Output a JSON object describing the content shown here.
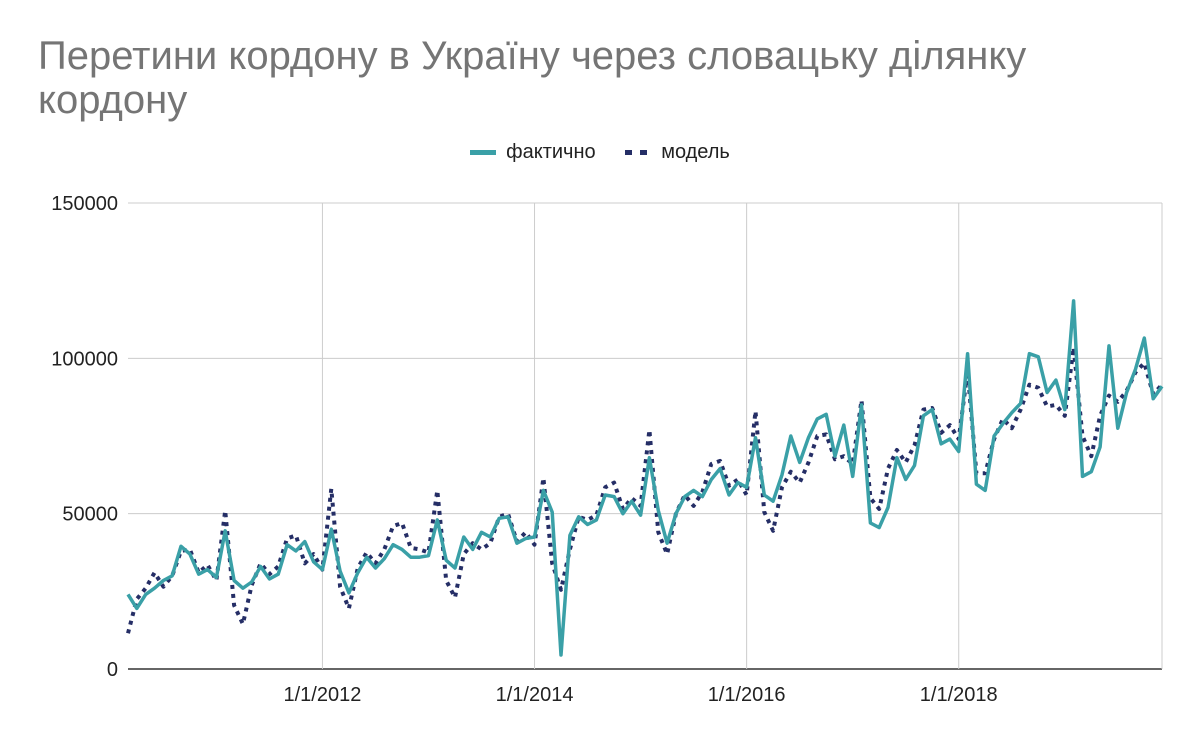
{
  "chart_data": {
    "type": "line",
    "title": "Перетини кордону в Україну через словацьку ділянку кордону",
    "xlabel": "",
    "ylabel": "",
    "x_tick_labels": [
      "1/1/2012",
      "1/1/2014",
      "1/1/2016",
      "1/1/2018"
    ],
    "y_tick_labels": [
      "0",
      "50000",
      "100000",
      "150000"
    ],
    "ylim": [
      0,
      150000
    ],
    "xlim": [
      "2010-03-01",
      "2019-12-01"
    ],
    "grid": true,
    "legend_position": "top",
    "x": [
      "2010-03",
      "2010-04",
      "2010-05",
      "2010-06",
      "2010-07",
      "2010-08",
      "2010-09",
      "2010-10",
      "2010-11",
      "2010-12",
      "2011-01",
      "2011-02",
      "2011-03",
      "2011-04",
      "2011-05",
      "2011-06",
      "2011-07",
      "2011-08",
      "2011-09",
      "2011-10",
      "2011-11",
      "2011-12",
      "2012-01",
      "2012-02",
      "2012-03",
      "2012-04",
      "2012-05",
      "2012-06",
      "2012-07",
      "2012-08",
      "2012-09",
      "2012-10",
      "2012-11",
      "2012-12",
      "2013-01",
      "2013-02",
      "2013-03",
      "2013-04",
      "2013-05",
      "2013-06",
      "2013-07",
      "2013-08",
      "2013-09",
      "2013-10",
      "2013-11",
      "2013-12",
      "2014-01",
      "2014-02",
      "2014-03",
      "2014-04",
      "2014-05",
      "2014-06",
      "2014-07",
      "2014-08",
      "2014-09",
      "2014-10",
      "2014-11",
      "2014-12",
      "2015-01",
      "2015-02",
      "2015-03",
      "2015-04",
      "2015-05",
      "2015-06",
      "2015-07",
      "2015-08",
      "2015-09",
      "2015-10",
      "2015-11",
      "2015-12",
      "2016-01",
      "2016-02",
      "2016-03",
      "2016-04",
      "2016-05",
      "2016-06",
      "2016-07",
      "2016-08",
      "2016-09",
      "2016-10",
      "2016-11",
      "2016-12",
      "2017-01",
      "2017-02",
      "2017-03",
      "2017-04",
      "2017-05",
      "2017-06",
      "2017-07",
      "2017-08",
      "2017-09",
      "2017-10",
      "2017-11",
      "2017-12",
      "2018-01",
      "2018-02",
      "2018-03",
      "2018-04",
      "2018-05",
      "2018-06",
      "2018-07",
      "2018-08",
      "2018-09",
      "2018-10",
      "2018-11",
      "2018-12",
      "2019-01",
      "2019-02",
      "2019-03",
      "2019-04",
      "2019-05",
      "2019-06",
      "2019-07",
      "2019-08",
      "2019-09",
      "2019-10",
      "2019-11",
      "2019-12"
    ],
    "series": [
      {
        "name": "фактично",
        "color": "#3aa0a7",
        "style": "solid",
        "values": [
          24000,
          19500,
          24000,
          26000,
          28500,
          30000,
          39500,
          37000,
          30500,
          32000,
          29500,
          44500,
          28500,
          26000,
          28000,
          33000,
          29000,
          30500,
          40000,
          38000,
          41000,
          34500,
          32000,
          45000,
          31500,
          24500,
          31000,
          36000,
          32500,
          35500,
          40000,
          38500,
          36000,
          36000,
          36500,
          48000,
          35000,
          32500,
          42500,
          38500,
          44000,
          42500,
          48500,
          49000,
          40500,
          42000,
          42500,
          57500,
          50500,
          4500,
          43000,
          49000,
          46500,
          48000,
          56000,
          55500,
          50000,
          54000,
          49500,
          68000,
          51000,
          40500,
          50000,
          55500,
          57500,
          55500,
          61000,
          64500,
          56000,
          60000,
          58500,
          74500,
          56000,
          54000,
          62500,
          75000,
          66500,
          74500,
          80500,
          82000,
          68500,
          78500,
          62000,
          85000,
          47000,
          45500,
          52000,
          68000,
          61000,
          65500,
          81500,
          83500,
          72500,
          74000,
          70000,
          101500,
          59500,
          57500,
          75000,
          79000,
          82500,
          85500,
          101500,
          100500,
          89000,
          93000,
          83500,
          118500,
          62000,
          63500,
          71500,
          104000,
          77500,
          89000,
          96500,
          106500,
          87000,
          91000
        ]
      },
      {
        "name": "модель",
        "color": "#252e66",
        "style": "dotted",
        "values": [
          11500,
          22500,
          26000,
          31000,
          26500,
          30000,
          38000,
          38500,
          31000,
          33500,
          28500,
          51000,
          20500,
          14500,
          27000,
          34000,
          30500,
          33000,
          42000,
          43000,
          34000,
          37000,
          32000,
          58000,
          26500,
          19500,
          32500,
          37500,
          34000,
          38500,
          46000,
          47000,
          39000,
          38500,
          37500,
          57500,
          28500,
          23000,
          37000,
          40500,
          38500,
          40500,
          49000,
          50000,
          41000,
          44000,
          40000,
          61500,
          34000,
          25500,
          38500,
          49000,
          48000,
          49500,
          58500,
          60000,
          51500,
          55000,
          52500,
          77000,
          44000,
          37000,
          50000,
          56000,
          52500,
          57000,
          66000,
          67000,
          59000,
          61000,
          56000,
          83000,
          50500,
          44500,
          58500,
          63500,
          60000,
          66500,
          75000,
          75500,
          67500,
          68500,
          66000,
          86500,
          55000,
          51500,
          64500,
          70500,
          66500,
          72000,
          83500,
          84000,
          76000,
          78500,
          74000,
          96000,
          63000,
          63000,
          74000,
          80500,
          77500,
          83500,
          91500,
          90500,
          84500,
          85000,
          81500,
          103500,
          75000,
          68500,
          81500,
          88000,
          86000,
          89500,
          95500,
          98500,
          88500,
          91500
        ]
      }
    ]
  }
}
